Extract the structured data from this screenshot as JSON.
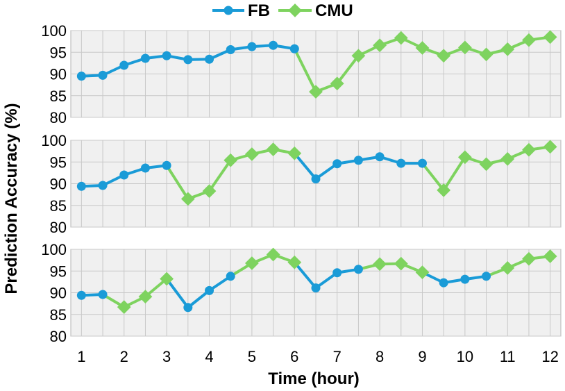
{
  "chart_data": {
    "type": "line",
    "ylabel": "Prediction Accuracy (%)",
    "xlabel": "Time (hour)",
    "x_ticks": [
      "1",
      "2",
      "3",
      "4",
      "5",
      "6",
      "7",
      "8",
      "9",
      "10",
      "11",
      "12"
    ],
    "ylim": [
      80,
      100
    ],
    "y_ticks": [
      "80",
      "85",
      "90",
      "95",
      "100"
    ],
    "grid": true,
    "legend_position": "top-center",
    "legend": [
      {
        "name": "FB",
        "color": "#1a9bd7",
        "marker": "circle"
      },
      {
        "name": "CMU",
        "color": "#7ed35f",
        "marker": "diamond"
      }
    ],
    "x": [
      1,
      1.5,
      2,
      2.5,
      3,
      3.5,
      4,
      4.5,
      5,
      5.5,
      6,
      6.5,
      7,
      7.5,
      8,
      8.5,
      9,
      9.5,
      10,
      10.5,
      11,
      11.5,
      12
    ],
    "panels": [
      {
        "values": [
          89.5,
          89.7,
          92.0,
          93.6,
          94.2,
          93.3,
          93.4,
          95.6,
          96.3,
          96.6,
          95.8,
          85.9,
          87.8,
          94.2,
          96.6,
          98.3,
          96.0,
          94.2,
          96.1,
          94.5,
          95.7,
          97.8,
          98.5
        ],
        "series": [
          "FB",
          "FB",
          "FB",
          "FB",
          "FB",
          "FB",
          "FB",
          "FB",
          "FB",
          "FB",
          "FB",
          "CMU",
          "CMU",
          "CMU",
          "CMU",
          "CMU",
          "CMU",
          "CMU",
          "CMU",
          "CMU",
          "CMU",
          "CMU",
          "CMU"
        ]
      },
      {
        "values": [
          89.4,
          89.6,
          92.0,
          93.6,
          94.2,
          86.5,
          88.3,
          95.4,
          96.8,
          97.9,
          97.0,
          91.1,
          94.6,
          95.4,
          96.2,
          94.7,
          94.7,
          88.5,
          96.1,
          94.5,
          95.7,
          97.8,
          98.5
        ],
        "series": [
          "FB",
          "FB",
          "FB",
          "FB",
          "FB",
          "CMU",
          "CMU",
          "CMU",
          "CMU",
          "CMU",
          "CMU",
          "FB",
          "FB",
          "FB",
          "FB",
          "FB",
          "FB",
          "CMU",
          "CMU",
          "CMU",
          "CMU",
          "CMU",
          "CMU"
        ]
      },
      {
        "values": [
          89.4,
          89.6,
          86.7,
          89.1,
          93.2,
          86.6,
          90.5,
          93.8,
          96.8,
          98.8,
          97.0,
          91.1,
          94.6,
          95.4,
          96.6,
          96.7,
          94.7,
          92.3,
          93.1,
          93.8,
          95.7,
          97.8,
          98.4
        ],
        "series": [
          "FB",
          "FB",
          "CMU",
          "CMU",
          "CMU",
          "FB",
          "FB",
          "FB",
          "CMU",
          "CMU",
          "CMU",
          "FB",
          "FB",
          "FB",
          "CMU",
          "CMU",
          "CMU",
          "FB",
          "FB",
          "FB",
          "CMU",
          "CMU",
          "CMU"
        ]
      }
    ]
  }
}
